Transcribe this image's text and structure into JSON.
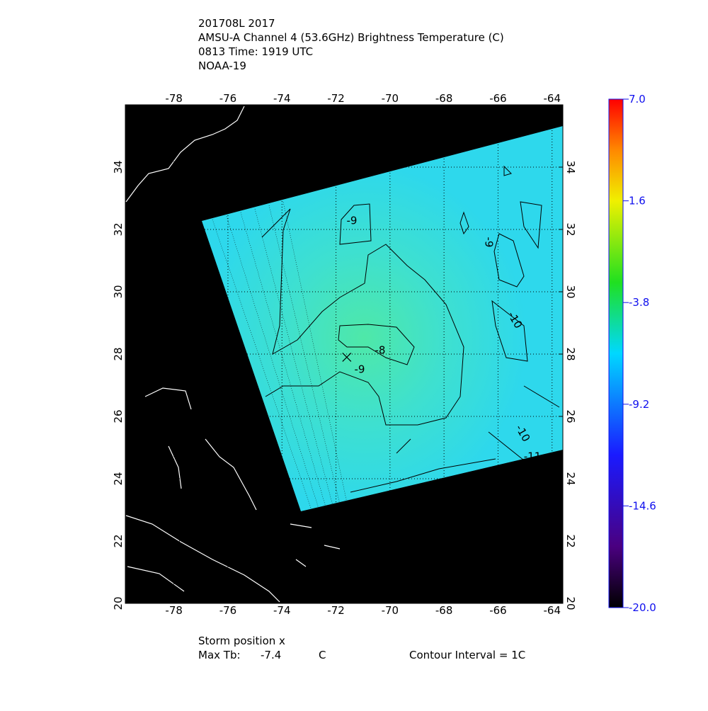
{
  "title_lines": [
    "201708L 2017",
    "AMSU-A Channel 4 (53.6GHz) Brightness Temperature (C)",
    "0813 Time: 1919 UTC",
    "NOAA-19"
  ],
  "map": {
    "xlim": [
      -79.8,
      -63.6
    ],
    "ylim": [
      20,
      36
    ],
    "xticks": [
      -78,
      -76,
      -74,
      -72,
      -70,
      -68,
      -66,
      -64
    ],
    "yticks": [
      20,
      22,
      24,
      26,
      28,
      30,
      32,
      34
    ],
    "grid": true,
    "storm": {
      "lon": -71.6,
      "lat": 27.9
    },
    "contour_labels": [
      -9,
      -8,
      -9,
      -9,
      -10,
      -10,
      -11
    ]
  },
  "colorbar": {
    "lim": [
      -20,
      7
    ],
    "ticks": [
      {
        "value": 7,
        "label": "7.0"
      },
      1.6,
      -3.8,
      -9.2,
      -14.6,
      {
        "value": -20,
        "label": "-20.0"
      }
    ]
  },
  "footer": {
    "storm_label": "Storm position x",
    "max_tb_label": "Max Tb:",
    "max_tb_value": -7.4,
    "max_tb_unit": "C",
    "contour_interval": "Contour Interval = 1C"
  }
}
